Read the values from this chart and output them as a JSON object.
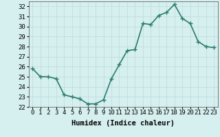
{
  "x": [
    0,
    1,
    2,
    3,
    4,
    5,
    6,
    7,
    8,
    9,
    10,
    11,
    12,
    13,
    14,
    15,
    16,
    17,
    18,
    19,
    20,
    21,
    22,
    23
  ],
  "y": [
    25.8,
    25.0,
    25.0,
    24.8,
    23.2,
    23.0,
    22.8,
    22.3,
    22.3,
    22.7,
    24.8,
    26.2,
    27.6,
    27.7,
    30.3,
    30.2,
    31.1,
    31.4,
    32.2,
    30.8,
    30.3,
    28.5,
    28.0,
    27.9
  ],
  "line_color": "#2a7d6e",
  "marker": "+",
  "marker_size": 4,
  "marker_color": "#2a7d6e",
  "bg_color": "#d6efef",
  "grid_color": "#bddada",
  "xlabel": "Humidex (Indice chaleur)",
  "ylabel_ticks": [
    22,
    23,
    24,
    25,
    26,
    27,
    28,
    29,
    30,
    31,
    32
  ],
  "xlim": [
    -0.5,
    23.5
  ],
  "ylim": [
    22,
    32.5
  ],
  "xtick_labels": [
    "0",
    "1",
    "2",
    "3",
    "4",
    "5",
    "6",
    "7",
    "8",
    "9",
    "10",
    "11",
    "12",
    "13",
    "14",
    "15",
    "16",
    "17",
    "18",
    "19",
    "20",
    "21",
    "22",
    "23"
  ],
  "tick_fontsize": 6.5,
  "xlabel_fontsize": 7.5,
  "line_width": 1.2
}
